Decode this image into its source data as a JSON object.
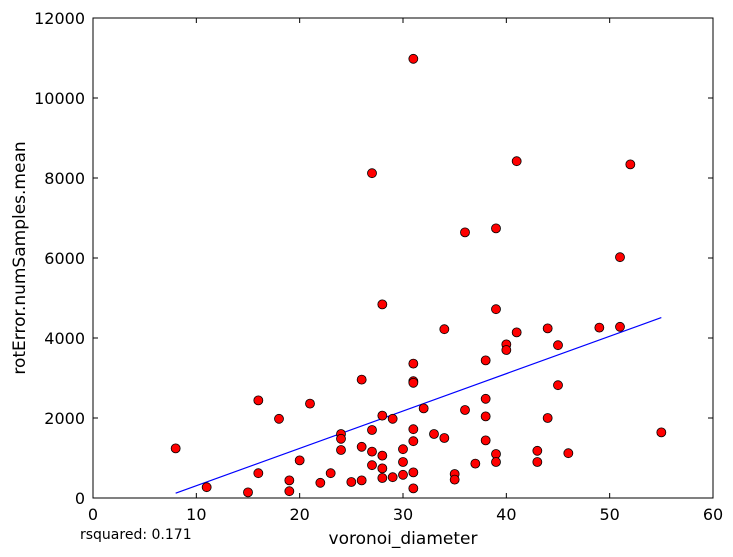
{
  "chart_data": {
    "type": "scatter",
    "title": "",
    "xlabel": "voronoi_diameter",
    "ylabel": "rotError.numSamples.mean",
    "xlim": [
      0,
      60
    ],
    "ylim": [
      0,
      12000
    ],
    "xticks": [
      0,
      10,
      20,
      30,
      40,
      50,
      60
    ],
    "yticks": [
      0,
      2000,
      4000,
      6000,
      8000,
      10000,
      12000
    ],
    "grid": false,
    "marker_color": "#ff0000",
    "marker_edge_color": "#000000",
    "line_color": "#0000ff",
    "points": [
      [
        8,
        1240
      ],
      [
        11,
        270
      ],
      [
        15,
        140
      ],
      [
        16,
        2440
      ],
      [
        16,
        620
      ],
      [
        18,
        1980
      ],
      [
        19,
        440
      ],
      [
        19,
        170
      ],
      [
        20,
        940
      ],
      [
        21,
        2360
      ],
      [
        22,
        380
      ],
      [
        23,
        620
      ],
      [
        24,
        1600
      ],
      [
        24,
        1480
      ],
      [
        24,
        1200
      ],
      [
        25,
        400
      ],
      [
        26,
        2960
      ],
      [
        26,
        1280
      ],
      [
        26,
        440
      ],
      [
        27,
        8120
      ],
      [
        27,
        1700
      ],
      [
        27,
        1160
      ],
      [
        27,
        820
      ],
      [
        28,
        4840
      ],
      [
        28,
        2060
      ],
      [
        28,
        1060
      ],
      [
        28,
        740
      ],
      [
        28,
        500
      ],
      [
        29,
        1980
      ],
      [
        29,
        520
      ],
      [
        30,
        1220
      ],
      [
        30,
        900
      ],
      [
        30,
        580
      ],
      [
        31,
        10980
      ],
      [
        31,
        3360
      ],
      [
        31,
        2920
      ],
      [
        31,
        2880
      ],
      [
        31,
        1720
      ],
      [
        31,
        1420
      ],
      [
        31,
        640
      ],
      [
        31,
        240
      ],
      [
        32,
        2240
      ],
      [
        33,
        1600
      ],
      [
        34,
        4220
      ],
      [
        34,
        1500
      ],
      [
        35,
        600
      ],
      [
        35,
        460
      ],
      [
        36,
        6640
      ],
      [
        36,
        2200
      ],
      [
        37,
        860
      ],
      [
        38,
        3440
      ],
      [
        38,
        2480
      ],
      [
        38,
        2040
      ],
      [
        38,
        1440
      ],
      [
        39,
        6740
      ],
      [
        39,
        4720
      ],
      [
        39,
        1100
      ],
      [
        39,
        900
      ],
      [
        40,
        3840
      ],
      [
        40,
        3700
      ],
      [
        41,
        8420
      ],
      [
        41,
        4140
      ],
      [
        43,
        1180
      ],
      [
        43,
        900
      ],
      [
        44,
        4240
      ],
      [
        44,
        2000
      ],
      [
        45,
        3820
      ],
      [
        45,
        2820
      ],
      [
        46,
        1120
      ],
      [
        49,
        4260
      ],
      [
        51,
        6020
      ],
      [
        51,
        4280
      ],
      [
        52,
        8340
      ],
      [
        55,
        1640
      ]
    ],
    "fit_line": {
      "x": [
        8,
        55
      ],
      "y": [
        120,
        4510
      ]
    },
    "annotation": {
      "label": "rsquared:",
      "value": "0.171"
    }
  }
}
